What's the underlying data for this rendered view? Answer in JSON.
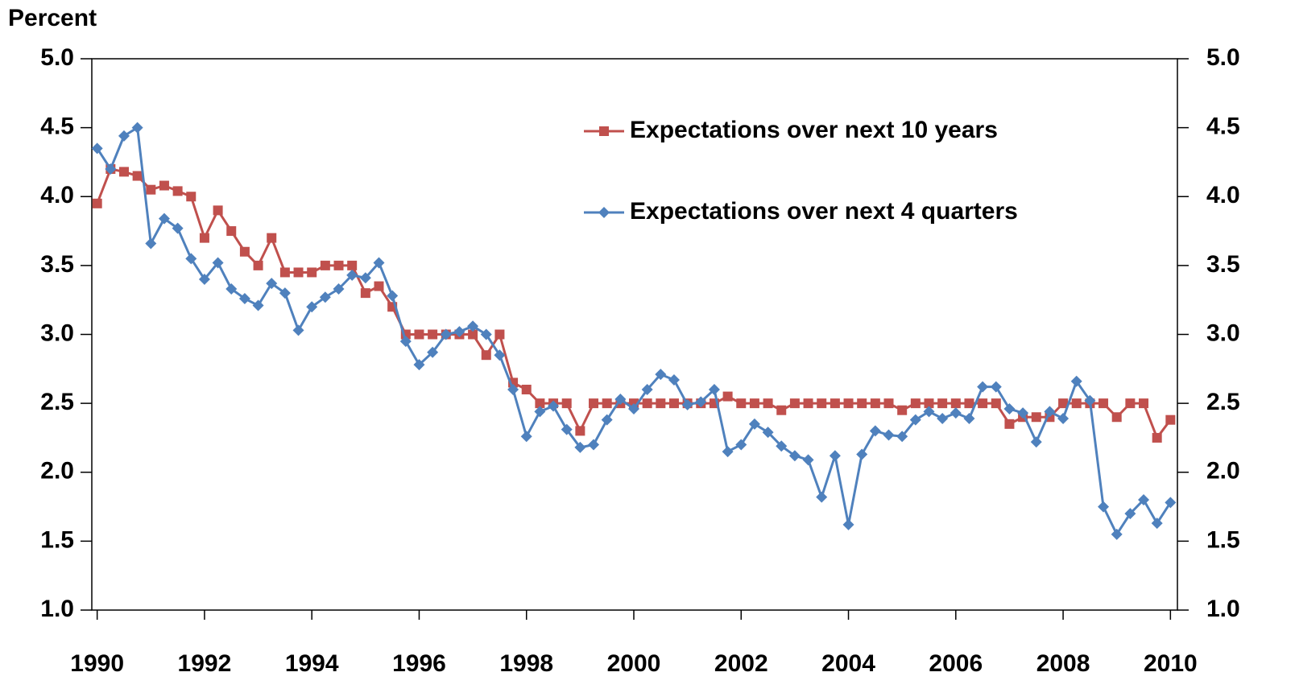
{
  "chart_data": {
    "type": "line",
    "y_label": "Percent",
    "x": [
      1990,
      1990.25,
      1990.5,
      1990.75,
      1991,
      1991.25,
      1991.5,
      1991.75,
      1992,
      1992.25,
      1992.5,
      1992.75,
      1993,
      1993.25,
      1993.5,
      1993.75,
      1994,
      1994.25,
      1994.5,
      1994.75,
      1995,
      1995.25,
      1995.5,
      1995.75,
      1996,
      1996.25,
      1996.5,
      1996.75,
      1997,
      1997.25,
      1997.5,
      1997.75,
      1998,
      1998.25,
      1998.5,
      1998.75,
      1999,
      1999.25,
      1999.5,
      1999.75,
      2000,
      2000.25,
      2000.5,
      2000.75,
      2001,
      2001.25,
      2001.5,
      2001.75,
      2002,
      2002.25,
      2002.5,
      2002.75,
      2003,
      2003.25,
      2003.5,
      2003.75,
      2004,
      2004.25,
      2004.5,
      2004.75,
      2005,
      2005.25,
      2005.5,
      2005.75,
      2006,
      2006.25,
      2006.5,
      2006.75,
      2007,
      2007.25,
      2007.5,
      2007.75,
      2008,
      2008.25,
      2008.5,
      2008.75,
      2009,
      2009.25,
      2009.5,
      2009.75,
      2010
    ],
    "series": [
      {
        "name": "Expectations over next 10 years",
        "color": "#c0504d",
        "marker": "square",
        "values": [
          3.95,
          4.2,
          4.18,
          4.15,
          4.05,
          4.08,
          4.04,
          4.0,
          3.7,
          3.9,
          3.75,
          3.6,
          3.5,
          3.7,
          3.45,
          3.45,
          3.45,
          3.5,
          3.5,
          3.5,
          3.3,
          3.35,
          3.2,
          3.0,
          3.0,
          3.0,
          3.0,
          3.0,
          3.0,
          2.85,
          3.0,
          2.65,
          2.6,
          2.5,
          2.5,
          2.5,
          2.3,
          2.5,
          2.5,
          2.5,
          2.5,
          2.5,
          2.5,
          2.5,
          2.5,
          2.5,
          2.5,
          2.55,
          2.5,
          2.5,
          2.5,
          2.45,
          2.5,
          2.5,
          2.5,
          2.5,
          2.5,
          2.5,
          2.5,
          2.5,
          2.45,
          2.5,
          2.5,
          2.5,
          2.5,
          2.5,
          2.5,
          2.5,
          2.35,
          2.4,
          2.4,
          2.4,
          2.5,
          2.5,
          2.5,
          2.5,
          2.4,
          2.5,
          2.5,
          2.25,
          2.38
        ]
      },
      {
        "name": "Expectations over next 4 quarters",
        "color": "#4f81bd",
        "marker": "diamond",
        "values": [
          4.35,
          4.2,
          4.44,
          4.5,
          3.66,
          3.84,
          3.77,
          3.55,
          3.4,
          3.52,
          3.33,
          3.26,
          3.21,
          3.37,
          3.3,
          3.03,
          3.2,
          3.27,
          3.33,
          3.43,
          3.41,
          3.52,
          3.28,
          2.95,
          2.78,
          2.87,
          3.0,
          3.02,
          3.06,
          3.0,
          2.85,
          2.6,
          2.26,
          2.44,
          2.48,
          2.31,
          2.18,
          2.2,
          2.38,
          2.53,
          2.46,
          2.6,
          2.71,
          2.67,
          2.49,
          2.51,
          2.6,
          2.15,
          2.2,
          2.35,
          2.29,
          2.19,
          2.12,
          2.09,
          1.82,
          2.12,
          1.62,
          2.13,
          2.3,
          2.27,
          2.26,
          2.38,
          2.44,
          2.39,
          2.43,
          2.39,
          2.62,
          2.62,
          2.46,
          2.43,
          2.22,
          2.44,
          2.39,
          2.66,
          2.52,
          1.75,
          1.55,
          1.7,
          1.8,
          1.63,
          1.78
        ]
      }
    ],
    "xlim": [
      1989.9,
      2010.13
    ],
    "xticks": [
      1990,
      1992,
      1994,
      1996,
      1998,
      2000,
      2002,
      2004,
      2006,
      2008,
      2010
    ],
    "ylim": [
      1,
      5
    ],
    "yticks": [
      {
        "value": 1,
        "label": "1.0"
      },
      1.5,
      {
        "value": 2,
        "label": "2.0"
      },
      2.5,
      {
        "value": 3,
        "label": "3.0"
      },
      3.5,
      {
        "value": 4,
        "label": "4.0"
      },
      4.5,
      {
        "value": 5,
        "label": "5.0"
      }
    ],
    "y2lim": [
      1,
      5
    ],
    "y2ticks": [
      {
        "value": 1,
        "label": "1.0"
      },
      1.5,
      {
        "value": 2,
        "label": "2.0"
      },
      2.5,
      {
        "value": 3,
        "label": "3.0"
      },
      3.5,
      {
        "value": 4,
        "label": "4.0"
      },
      4.5,
      {
        "value": 5,
        "label": "5.0"
      }
    ],
    "legend": "upper right",
    "grid": false
  }
}
